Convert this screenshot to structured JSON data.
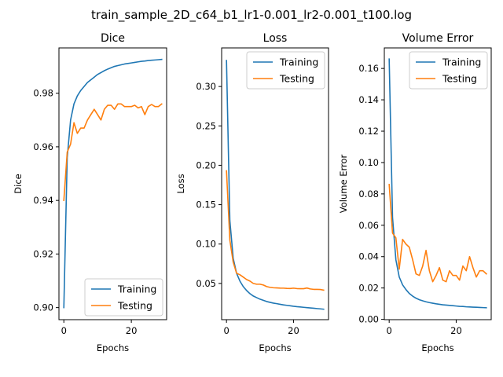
{
  "figure": {
    "suptitle": "train_sample_2D_c64_b1_lr1-0.001_lr2-0.001_t100.log"
  },
  "colors": {
    "training": "#1f77b4",
    "testing": "#ff7f0e"
  },
  "chart_data": [
    {
      "type": "line",
      "title": "Dice",
      "xlabel": "Epochs",
      "ylabel": "Dice",
      "xlim": [
        -1.45,
        30.45
      ],
      "ylim": [
        0.8955,
        0.9969
      ],
      "xticks": [
        0,
        20
      ],
      "xtick_labels": [
        "0",
        "20"
      ],
      "yticks": [
        0.9,
        0.92,
        0.94,
        0.96,
        0.98
      ],
      "ytick_labels": [
        "0.90",
        "0.92",
        "0.94",
        "0.96",
        "0.98"
      ],
      "legend_position": "lower-right",
      "grid": false,
      "x": [
        0,
        1,
        2,
        3,
        4,
        5,
        6,
        7,
        8,
        9,
        10,
        11,
        12,
        13,
        14,
        15,
        16,
        17,
        18,
        19,
        20,
        21,
        22,
        23,
        24,
        25,
        26,
        27,
        28,
        29
      ],
      "series": [
        {
          "name": "Training",
          "values": [
            0.9,
            0.956,
            0.97,
            0.976,
            0.979,
            0.981,
            0.9825,
            0.984,
            0.985,
            0.986,
            0.987,
            0.9877,
            0.9884,
            0.989,
            0.9895,
            0.99,
            0.9903,
            0.9906,
            0.9909,
            0.9911,
            0.9913,
            0.9915,
            0.9917,
            0.9919,
            0.992,
            0.9922,
            0.9923,
            0.9924,
            0.9925,
            0.9926
          ]
        },
        {
          "name": "Testing",
          "values": [
            0.94,
            0.958,
            0.961,
            0.969,
            0.965,
            0.967,
            0.967,
            0.97,
            0.972,
            0.974,
            0.972,
            0.97,
            0.974,
            0.9755,
            0.9755,
            0.974,
            0.976,
            0.976,
            0.975,
            0.975,
            0.975,
            0.9755,
            0.9745,
            0.975,
            0.972,
            0.975,
            0.9758,
            0.975,
            0.975,
            0.976
          ]
        }
      ]
    },
    {
      "type": "line",
      "title": "Loss",
      "xlabel": "Epochs",
      "ylabel": "Loss",
      "xlim": [
        -1.45,
        30.45
      ],
      "ylim": [
        0.004,
        0.349
      ],
      "xticks": [
        0,
        20
      ],
      "xtick_labels": [
        "0",
        "20"
      ],
      "yticks": [
        0.05,
        0.1,
        0.15,
        0.2,
        0.25,
        0.3
      ],
      "ytick_labels": [
        "0.05",
        "0.10",
        "0.15",
        "0.20",
        "0.25",
        "0.30"
      ],
      "legend_position": "top-right",
      "grid": false,
      "x": [
        0,
        1,
        2,
        3,
        4,
        5,
        6,
        7,
        8,
        9,
        10,
        11,
        12,
        13,
        14,
        15,
        16,
        17,
        18,
        19,
        20,
        21,
        22,
        23,
        24,
        25,
        26,
        27,
        28,
        29
      ],
      "series": [
        {
          "name": "Training",
          "values": [
            0.333,
            0.13,
            0.082,
            0.063,
            0.053,
            0.046,
            0.041,
            0.037,
            0.034,
            0.032,
            0.03,
            0.0285,
            0.027,
            0.026,
            0.025,
            0.0243,
            0.0235,
            0.0228,
            0.0222,
            0.0216,
            0.021,
            0.0205,
            0.0201,
            0.0197,
            0.0193,
            0.0189,
            0.0185,
            0.0181,
            0.0177,
            0.0173
          ]
        },
        {
          "name": "Testing",
          "values": [
            0.193,
            0.105,
            0.077,
            0.063,
            0.061,
            0.058,
            0.055,
            0.053,
            0.05,
            0.049,
            0.049,
            0.048,
            0.046,
            0.045,
            0.0445,
            0.0443,
            0.0441,
            0.044,
            0.0437,
            0.0436,
            0.044,
            0.0435,
            0.0433,
            0.0433,
            0.0442,
            0.043,
            0.0425,
            0.0425,
            0.0423,
            0.0415
          ]
        }
      ]
    },
    {
      "type": "line",
      "title": "Volume Error",
      "xlabel": "Epochs",
      "ylabel": "Volume Error",
      "xlim": [
        -1.45,
        30.45
      ],
      "ylim": [
        -0.0002,
        0.1731
      ],
      "xticks": [
        0,
        20
      ],
      "xtick_labels": [
        "0",
        "20"
      ],
      "yticks": [
        0.0,
        0.02,
        0.04,
        0.06,
        0.08,
        0.1,
        0.12,
        0.14,
        0.16
      ],
      "ytick_labels": [
        "0.00",
        "0.02",
        "0.04",
        "0.06",
        "0.08",
        "0.10",
        "0.12",
        "0.14",
        "0.16"
      ],
      "legend_position": "top-right",
      "grid": false,
      "x": [
        0,
        1,
        2,
        3,
        4,
        5,
        6,
        7,
        8,
        9,
        10,
        11,
        12,
        13,
        14,
        15,
        16,
        17,
        18,
        19,
        20,
        21,
        22,
        23,
        24,
        25,
        26,
        27,
        28,
        29
      ],
      "series": [
        {
          "name": "Training",
          "values": [
            0.166,
            0.065,
            0.038,
            0.027,
            0.022,
            0.019,
            0.0165,
            0.0148,
            0.0135,
            0.0125,
            0.0118,
            0.0112,
            0.0107,
            0.0103,
            0.0099,
            0.0096,
            0.0093,
            0.0091,
            0.0089,
            0.0087,
            0.0085,
            0.0083,
            0.0082,
            0.008,
            0.0079,
            0.0078,
            0.0077,
            0.0076,
            0.0075,
            0.0074
          ]
        },
        {
          "name": "Testing",
          "values": [
            0.086,
            0.055,
            0.052,
            0.032,
            0.051,
            0.048,
            0.046,
            0.038,
            0.029,
            0.028,
            0.034,
            0.044,
            0.031,
            0.024,
            0.028,
            0.033,
            0.025,
            0.024,
            0.031,
            0.028,
            0.028,
            0.025,
            0.034,
            0.031,
            0.04,
            0.033,
            0.027,
            0.031,
            0.031,
            0.029
          ]
        }
      ]
    }
  ]
}
